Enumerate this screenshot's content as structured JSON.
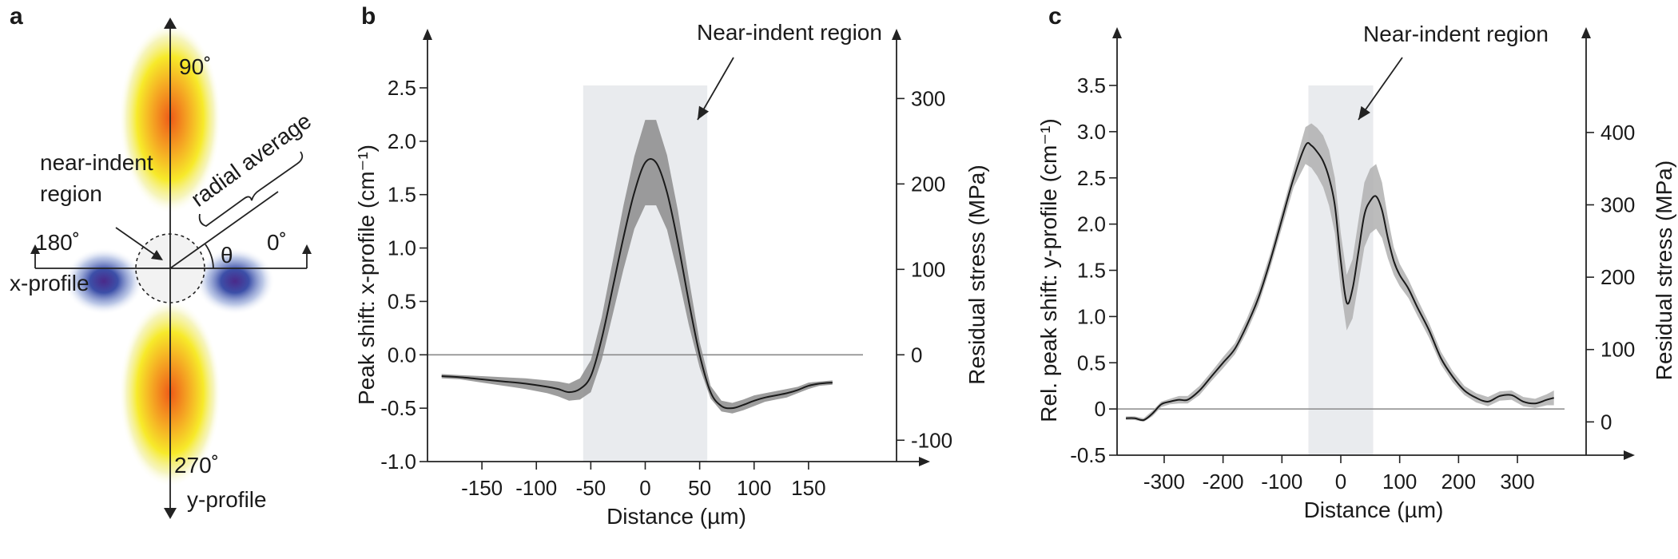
{
  "panel_a": {
    "letter": "a",
    "label_90": "90˚",
    "label_180": "180˚",
    "label_0": "0˚",
    "label_270": "270˚",
    "label_theta": "θ",
    "label_near_1": "near-indent",
    "label_near_2": "region",
    "label_radial": "radial average",
    "label_xprofile": "x-profile",
    "label_yprofile": "y-profile"
  },
  "colors": {
    "curve": "#1a1a1a",
    "band_b": "#8c8c8c",
    "band_c": "#b0b0b0",
    "region": "#e9ebee",
    "zero_line": "#8a8a8a",
    "lobe_hot": "#f28a1e",
    "lobe_yellow": "#f7ea2a",
    "lobe_blue": "#3c4fa8"
  },
  "chart_data": [
    {
      "type": "line",
      "panel": "b",
      "xlabel": "Distance (µm)",
      "ylabel": "Peak shift: x-profile (cm⁻¹)",
      "y2label": "Residual stress (MPa)",
      "annotation": "Near-indent region",
      "xlim": [
        -200,
        200
      ],
      "ylim": [
        -1.0,
        2.5
      ],
      "y2lim": [
        -125,
        312.5
      ],
      "xticks": [
        -150,
        -100,
        -50,
        0,
        50,
        100,
        150
      ],
      "yticks": [
        -1.0,
        -0.5,
        0.0,
        0.5,
        1.0,
        1.5,
        2.0,
        2.5
      ],
      "ytick_labels": [
        "-1.0",
        "-0.5",
        "0.0",
        "0.5",
        "1.0",
        "1.5",
        "2.0",
        "2.5"
      ],
      "y2ticks": [
        -100,
        0,
        100,
        200,
        300
      ],
      "region": [
        -57,
        57
      ],
      "zero_line": 0,
      "x": [
        -187,
        -170,
        -150,
        -130,
        -110,
        -90,
        -80,
        -70,
        -60,
        -50,
        -40,
        -30,
        -20,
        -10,
        0,
        10,
        20,
        30,
        40,
        50,
        60,
        70,
        80,
        90,
        100,
        110,
        120,
        130,
        140,
        150,
        160,
        172
      ],
      "y": [
        -0.2,
        -0.21,
        -0.23,
        -0.25,
        -0.27,
        -0.3,
        -0.32,
        -0.35,
        -0.32,
        -0.2,
        0.15,
        0.62,
        1.1,
        1.52,
        1.8,
        1.8,
        1.52,
        1.05,
        0.5,
        0.0,
        -0.35,
        -0.48,
        -0.5,
        -0.47,
        -0.43,
        -0.4,
        -0.38,
        -0.36,
        -0.33,
        -0.29,
        -0.27,
        -0.26
      ],
      "band": [
        0.02,
        0.02,
        0.03,
        0.04,
        0.05,
        0.06,
        0.07,
        0.08,
        0.1,
        0.15,
        0.2,
        0.25,
        0.3,
        0.34,
        0.4,
        0.4,
        0.35,
        0.3,
        0.22,
        0.12,
        0.06,
        0.05,
        0.05,
        0.05,
        0.05,
        0.04,
        0.04,
        0.04,
        0.03,
        0.03,
        0.02,
        0.02
      ]
    },
    {
      "type": "line",
      "panel": "c",
      "xlabel": "Distance (µm)",
      "ylabel": "Rel. peak shift: y-profile (cm⁻¹)",
      "y2label": "Residual stress (MPa)",
      "annotation": "Near-indent region",
      "xlim": [
        -380,
        380
      ],
      "ylim": [
        -0.5,
        3.5
      ],
      "y2lim": [
        -46,
        465
      ],
      "xticks": [
        -300,
        -200,
        -100,
        0,
        100,
        200,
        300
      ],
      "yticks": [
        -0.5,
        0,
        0.5,
        1.0,
        1.5,
        2.0,
        2.5,
        3.0,
        3.5
      ],
      "ytick_labels": [
        "-0.5",
        "0",
        "0.5",
        "1.0",
        "1.5",
        "2.0",
        "2.5",
        "3.0",
        "3.5"
      ],
      "y2ticks": [
        0,
        100,
        200,
        300,
        400
      ],
      "region": [
        -55,
        55
      ],
      "zero_line": 0,
      "x": [
        -365,
        -350,
        -335,
        -320,
        -305,
        -290,
        -275,
        -260,
        -240,
        -220,
        -200,
        -180,
        -160,
        -140,
        -120,
        -100,
        -80,
        -60,
        -50,
        -40,
        -30,
        -20,
        -10,
        0,
        10,
        20,
        30,
        40,
        50,
        60,
        70,
        80,
        90,
        100,
        115,
        130,
        150,
        170,
        190,
        210,
        230,
        250,
        270,
        290,
        310,
        330,
        350,
        362
      ],
      "y": [
        -0.1,
        -0.1,
        -0.12,
        -0.05,
        0.05,
        0.08,
        0.1,
        0.1,
        0.2,
        0.35,
        0.5,
        0.65,
        0.9,
        1.2,
        1.6,
        2.05,
        2.5,
        2.85,
        2.85,
        2.78,
        2.68,
        2.5,
        2.2,
        1.6,
        1.15,
        1.3,
        1.7,
        2.1,
        2.25,
        2.3,
        2.15,
        1.85,
        1.6,
        1.45,
        1.3,
        1.1,
        0.85,
        0.55,
        0.35,
        0.2,
        0.12,
        0.08,
        0.14,
        0.15,
        0.08,
        0.06,
        0.1,
        0.12
      ],
      "band": [
        0.02,
        0.02,
        0.02,
        0.03,
        0.03,
        0.03,
        0.04,
        0.04,
        0.05,
        0.05,
        0.06,
        0.06,
        0.07,
        0.08,
        0.08,
        0.09,
        0.1,
        0.2,
        0.24,
        0.26,
        0.28,
        0.3,
        0.3,
        0.3,
        0.3,
        0.32,
        0.34,
        0.35,
        0.35,
        0.35,
        0.3,
        0.22,
        0.15,
        0.12,
        0.1,
        0.09,
        0.08,
        0.07,
        0.06,
        0.05,
        0.05,
        0.05,
        0.05,
        0.05,
        0.05,
        0.05,
        0.06,
        0.08
      ]
    }
  ]
}
